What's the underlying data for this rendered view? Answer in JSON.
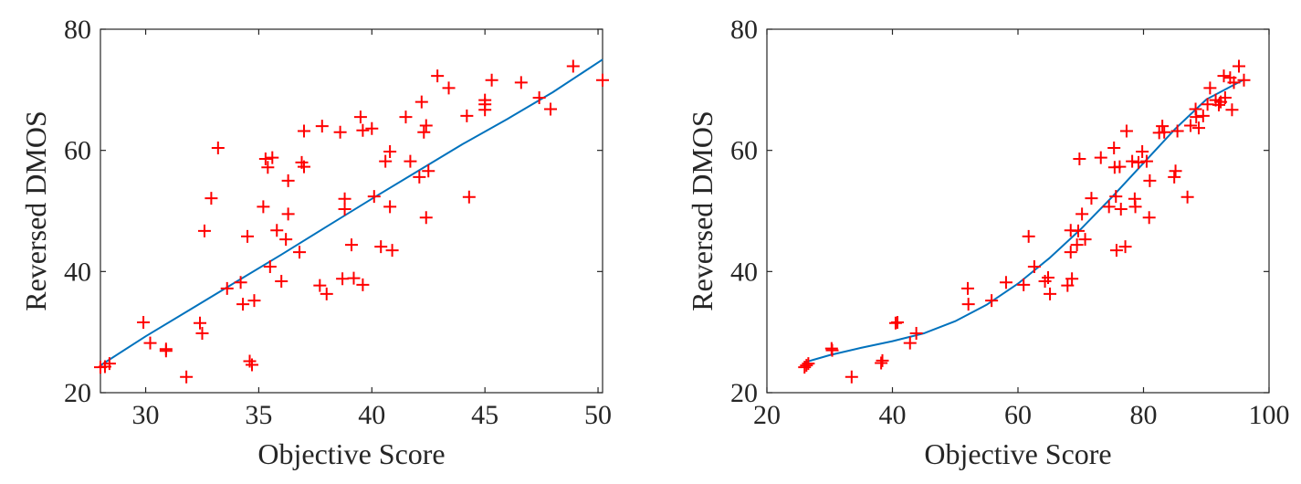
{
  "colors": {
    "fit": "#0072BD",
    "marker": "#FF0000",
    "axis": "#262626",
    "background": "#FFFFFF"
  },
  "chart_data": [
    {
      "type": "scatter",
      "title": "",
      "xlabel": "Objective Score",
      "ylabel": "Reversed DMOS",
      "xlim": [
        28,
        50.2
      ],
      "ylim": [
        20,
        80
      ],
      "xticks": [
        30,
        35,
        40,
        45,
        50
      ],
      "yticks": [
        20,
        40,
        60,
        80
      ],
      "grid": false,
      "legend": "none",
      "marker": "plus",
      "points": [
        [
          28.0,
          24.2
        ],
        [
          28.2,
          24.3
        ],
        [
          28.4,
          24.8
        ],
        [
          29.9,
          31.6
        ],
        [
          30.2,
          28.2
        ],
        [
          30.9,
          27.2
        ],
        [
          30.9,
          26.9
        ],
        [
          31.8,
          22.6
        ],
        [
          32.4,
          31.5
        ],
        [
          32.5,
          29.8
        ],
        [
          32.6,
          46.7
        ],
        [
          32.9,
          52.1
        ],
        [
          33.2,
          60.4
        ],
        [
          33.6,
          37.2
        ],
        [
          34.2,
          38.2
        ],
        [
          34.3,
          34.6
        ],
        [
          34.5,
          45.8
        ],
        [
          34.6,
          25.2
        ],
        [
          34.7,
          24.6
        ],
        [
          34.8,
          35.2
        ],
        [
          35.2,
          50.7
        ],
        [
          35.3,
          58.6
        ],
        [
          35.4,
          57.2
        ],
        [
          35.5,
          40.8
        ],
        [
          35.6,
          58.8
        ],
        [
          35.8,
          46.8
        ],
        [
          36.0,
          38.4
        ],
        [
          36.2,
          45.3
        ],
        [
          36.3,
          55.0
        ],
        [
          36.3,
          49.5
        ],
        [
          36.8,
          43.2
        ],
        [
          36.9,
          58.0
        ],
        [
          37.0,
          57.3
        ],
        [
          37.0,
          63.2
        ],
        [
          37.7,
          37.7
        ],
        [
          37.8,
          64.0
        ],
        [
          38.0,
          36.3
        ],
        [
          38.6,
          63.0
        ],
        [
          38.7,
          38.8
        ],
        [
          38.8,
          52.0
        ],
        [
          38.8,
          50.3
        ],
        [
          39.1,
          44.4
        ],
        [
          39.2,
          38.9
        ],
        [
          39.5,
          65.5
        ],
        [
          39.6,
          37.8
        ],
        [
          39.6,
          63.3
        ],
        [
          40.0,
          63.6
        ],
        [
          40.1,
          52.4
        ],
        [
          40.4,
          44.1
        ],
        [
          40.6,
          58.2
        ],
        [
          40.8,
          59.8
        ],
        [
          40.8,
          50.7
        ],
        [
          40.9,
          43.5
        ],
        [
          41.5,
          65.5
        ],
        [
          41.7,
          58.2
        ],
        [
          42.1,
          55.6
        ],
        [
          42.2,
          68.0
        ],
        [
          42.3,
          63.0
        ],
        [
          42.4,
          64.1
        ],
        [
          42.4,
          48.9
        ],
        [
          42.5,
          56.6
        ],
        [
          42.9,
          72.3
        ],
        [
          43.4,
          70.3
        ],
        [
          44.2,
          65.7
        ],
        [
          44.3,
          52.3
        ],
        [
          45.0,
          67.6
        ],
        [
          45.0,
          68.3
        ],
        [
          45.0,
          66.7
        ],
        [
          45.3,
          71.6
        ],
        [
          46.6,
          71.2
        ],
        [
          47.4,
          68.7
        ],
        [
          47.9,
          66.8
        ],
        [
          48.9,
          73.9
        ],
        [
          50.2,
          71.6
        ]
      ],
      "fit_curve": [
        [
          28,
          24.5
        ],
        [
          30,
          29.3
        ],
        [
          32,
          33.8
        ],
        [
          34,
          38.3
        ],
        [
          36,
          42.8
        ],
        [
          38,
          47.4
        ],
        [
          40,
          52.0
        ],
        [
          42,
          56.5
        ],
        [
          44,
          61.0
        ],
        [
          46,
          65.2
        ],
        [
          48,
          69.6
        ],
        [
          50.2,
          75.0
        ]
      ]
    },
    {
      "type": "scatter",
      "title": "",
      "xlabel": "Objective Score",
      "ylabel": "Reversed DMOS",
      "xlim": [
        20,
        100
      ],
      "ylim": [
        20,
        80
      ],
      "xticks": [
        20,
        40,
        60,
        80,
        100
      ],
      "yticks": [
        20,
        40,
        60,
        80
      ],
      "grid": false,
      "legend": "none",
      "marker": "plus",
      "points": [
        [
          26.0,
          24.2
        ],
        [
          26.3,
          24.5
        ],
        [
          26.6,
          24.8
        ],
        [
          30.3,
          27.3
        ],
        [
          30.4,
          27.0
        ],
        [
          33.5,
          22.6
        ],
        [
          38.2,
          24.9
        ],
        [
          38.4,
          25.3
        ],
        [
          40.5,
          31.5
        ],
        [
          40.8,
          31.6
        ],
        [
          42.8,
          28.2
        ],
        [
          43.8,
          29.8
        ],
        [
          52.0,
          37.2
        ],
        [
          52.1,
          34.6
        ],
        [
          55.8,
          35.2
        ],
        [
          58.1,
          38.2
        ],
        [
          60.9,
          37.8
        ],
        [
          61.7,
          45.8
        ],
        [
          62.6,
          40.8
        ],
        [
          64.3,
          38.4
        ],
        [
          64.8,
          39.0
        ],
        [
          65.1,
          36.3
        ],
        [
          67.9,
          37.7
        ],
        [
          68.4,
          43.2
        ],
        [
          68.4,
          46.8
        ],
        [
          68.6,
          38.8
        ],
        [
          69.4,
          44.4
        ],
        [
          69.6,
          46.7
        ],
        [
          69.8,
          58.6
        ],
        [
          70.2,
          49.5
        ],
        [
          70.7,
          45.3
        ],
        [
          71.7,
          52.1
        ],
        [
          73.2,
          58.8
        ],
        [
          74.5,
          50.7
        ],
        [
          75.3,
          60.4
        ],
        [
          75.4,
          57.2
        ],
        [
          75.6,
          52.4
        ],
        [
          75.7,
          43.5
        ],
        [
          76.2,
          57.3
        ],
        [
          76.4,
          50.3
        ],
        [
          77.1,
          44.1
        ],
        [
          77.3,
          63.2
        ],
        [
          78.2,
          58.2
        ],
        [
          78.6,
          52.0
        ],
        [
          78.7,
          50.7
        ],
        [
          79.2,
          58.0
        ],
        [
          79.8,
          59.8
        ],
        [
          80.5,
          58.2
        ],
        [
          80.9,
          48.9
        ],
        [
          81.0,
          55.0
        ],
        [
          82.5,
          62.9
        ],
        [
          83.0,
          64.0
        ],
        [
          83.3,
          63.0
        ],
        [
          84.9,
          55.6
        ],
        [
          85.1,
          56.6
        ],
        [
          85.4,
          63.2
        ],
        [
          87.0,
          52.3
        ],
        [
          87.5,
          64.1
        ],
        [
          88.3,
          66.8
        ],
        [
          88.4,
          65.5
        ],
        [
          88.8,
          63.7
        ],
        [
          89.5,
          65.7
        ],
        [
          90.2,
          67.6
        ],
        [
          90.6,
          70.3
        ],
        [
          91.5,
          68.3
        ],
        [
          92.0,
          67.5
        ],
        [
          92.3,
          68.0
        ],
        [
          92.8,
          72.3
        ],
        [
          93.0,
          68.7
        ],
        [
          93.8,
          72.0
        ],
        [
          94.1,
          66.7
        ],
        [
          94.4,
          71.2
        ],
        [
          95.2,
          73.9
        ],
        [
          96.0,
          71.6
        ]
      ],
      "fit_curve": [
        [
          26,
          25.0
        ],
        [
          30,
          26.2
        ],
        [
          35,
          27.4
        ],
        [
          40,
          28.5
        ],
        [
          45,
          29.8
        ],
        [
          50,
          31.8
        ],
        [
          55,
          34.5
        ],
        [
          60,
          38.0
        ],
        [
          65,
          42.2
        ],
        [
          70,
          47.0
        ],
        [
          75,
          52.3
        ],
        [
          80,
          57.9
        ],
        [
          85,
          63.5
        ],
        [
          90,
          68.4
        ],
        [
          96,
          71.7
        ]
      ]
    }
  ]
}
